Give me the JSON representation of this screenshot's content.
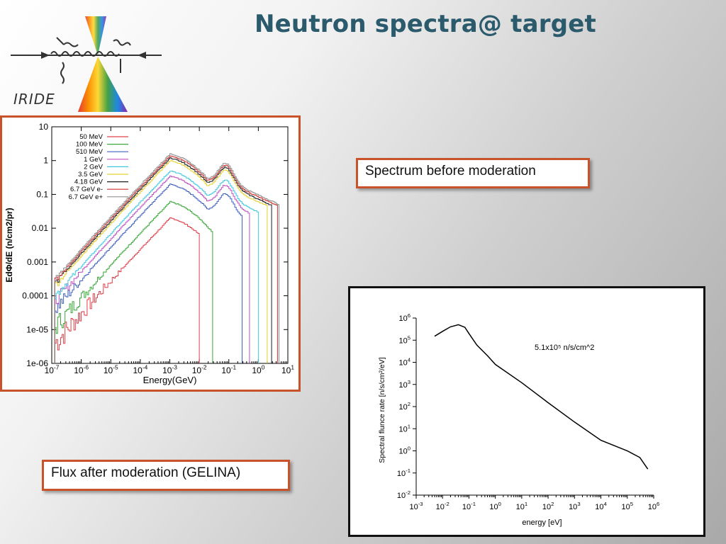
{
  "slide": {
    "title": "Neutron spectra@ target",
    "logo_text": "IRIDE",
    "callout_top": "Spectrum before moderation",
    "callout_bottom": "Flux after moderation (GELINA)"
  },
  "chart_data": [
    {
      "type": "line",
      "xlabel": "Energy(GeV)",
      "ylabel": "EdΦ/dE (n/cm2/pr)",
      "x_scale": "log",
      "y_scale": "log",
      "xlim": [
        1e-07,
        10
      ],
      "ylim": [
        1e-06,
        10
      ],
      "x_ticks": [
        -7,
        -6,
        -5,
        -4,
        -3,
        -2,
        -1,
        0,
        1
      ],
      "y_tick_labels": [
        "10",
        "1",
        "0.1",
        "0.01",
        "0.001",
        "0.0001",
        "1e-05",
        "1e-06"
      ],
      "legend_placement": "top-left",
      "series": [
        {
          "name": "50 MeV",
          "color": "#e0404a",
          "peak": 0.02,
          "cutoff": 0.01
        },
        {
          "name": "100 MeV",
          "color": "#3aa83a",
          "peak": 0.06,
          "cutoff": 0.03
        },
        {
          "name": "510 MeV",
          "color": "#4060c0",
          "peak": 0.2,
          "cutoff": 0.3
        },
        {
          "name": "1 GeV",
          "color": "#c050c0",
          "peak": 0.35,
          "cutoff": 0.5
        },
        {
          "name": "2 GeV",
          "color": "#40c8e0",
          "peak": 0.5,
          "cutoff": 1.0
        },
        {
          "name": "3.5 GeV",
          "color": "#e8d030",
          "peak": 1.0,
          "cutoff": 2.0
        },
        {
          "name": "4.18 GeV",
          "color": "#202020",
          "peak": 1.2,
          "cutoff": 3.0
        },
        {
          "name": "6.7 GeV e-",
          "color": "#d03030",
          "peak": 1.4,
          "cutoff": 4.5
        },
        {
          "name": "6.7 GeV e+",
          "color": "#909090",
          "peak": 1.6,
          "cutoff": 5.0
        }
      ]
    },
    {
      "type": "line",
      "xlabel": "energy [eV]",
      "ylabel": "Spectral flunce rate [n/s/cm²/eV]",
      "x_scale": "log",
      "y_scale": "log",
      "xlim": [
        0.001,
        1000000
      ],
      "ylim": [
        0.01,
        1000000
      ],
      "x_tick_exponents": [
        -3,
        -2,
        -1,
        0,
        1,
        2,
        3,
        4,
        5,
        6
      ],
      "y_tick_exponents": [
        -2,
        -1,
        0,
        1,
        2,
        3,
        4,
        5,
        6
      ],
      "annotation": "5.1x10⁵ n/s/cm^2",
      "series": [
        {
          "name": "",
          "color": "#000000",
          "x": [
            0.005,
            0.01,
            0.02,
            0.04,
            0.07,
            0.1,
            0.2,
            0.5,
            1,
            10,
            100,
            1000,
            10000,
            100000,
            300000,
            600000
          ],
          "y": [
            150000,
            250000,
            400000,
            500000,
            380000,
            200000,
            60000,
            20000,
            8000,
            1200,
            150,
            20,
            3,
            1,
            0.5,
            0.15
          ]
        }
      ]
    }
  ]
}
